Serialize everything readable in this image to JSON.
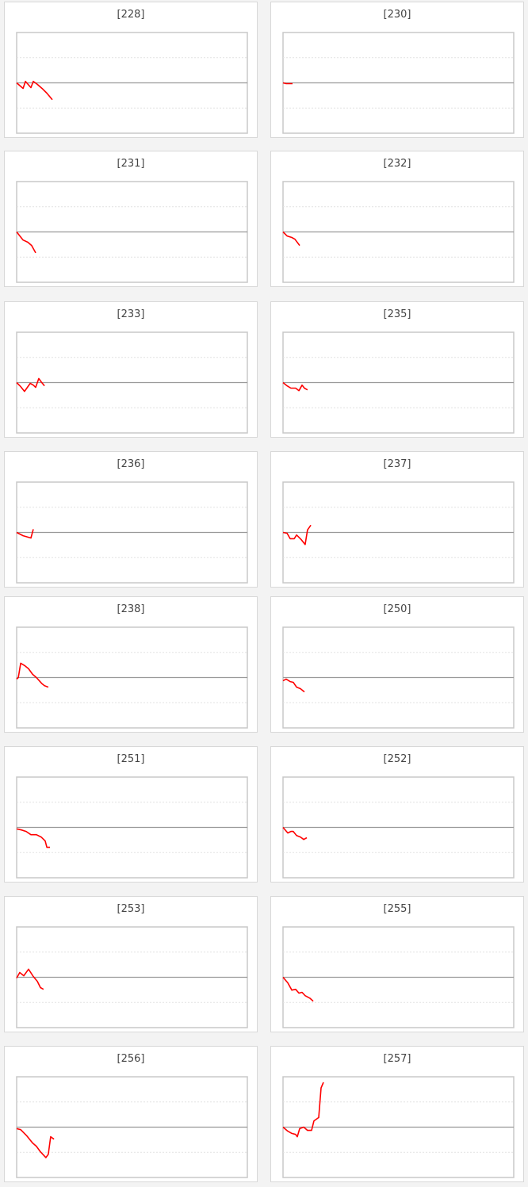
{
  "chart_data": [
    {
      "type": "line",
      "title": "[228]",
      "xlim": [
        0,
        97
      ],
      "ylim": [
        -2,
        2
      ],
      "grid": true,
      "line_color": "#ff0000",
      "x": [
        0,
        2.7,
        3.7,
        6,
        7,
        8.7,
        11,
        12.7,
        15
      ],
      "y": [
        0,
        -0.22,
        0.06,
        -0.19,
        0.06,
        -0.06,
        -0.25,
        -0.41,
        -0.67
      ]
    },
    {
      "type": "line",
      "title": "[230]",
      "xlim": [
        0,
        97
      ],
      "ylim": [
        -2,
        2
      ],
      "grid": true,
      "line_color": "#ff0000",
      "x": [
        0,
        1.3,
        4
      ],
      "y": [
        0,
        -0.03,
        -0.03
      ]
    },
    {
      "type": "line",
      "title": "[231]",
      "xlim": [
        0,
        97
      ],
      "ylim": [
        -2,
        2
      ],
      "grid": true,
      "line_color": "#ff0000",
      "x": [
        0,
        2.7,
        4.7,
        6.3,
        8
      ],
      "y": [
        0,
        -0.32,
        -0.41,
        -0.54,
        -0.83
      ]
    },
    {
      "type": "line",
      "title": "[232]",
      "xlim": [
        0,
        97
      ],
      "ylim": [
        -2,
        2
      ],
      "grid": true,
      "line_color": "#ff0000",
      "x": [
        0,
        1.7,
        3.7,
        5,
        7
      ],
      "y": [
        0,
        -0.16,
        -0.22,
        -0.29,
        -0.54
      ]
    },
    {
      "type": "line",
      "title": "[233]",
      "xlim": [
        0,
        97
      ],
      "ylim": [
        -2,
        2
      ],
      "grid": true,
      "line_color": "#ff0000",
      "x": [
        0,
        1.7,
        3.3,
        5.7,
        7,
        8,
        9.3,
        10.3,
        11.7
      ],
      "y": [
        0,
        -0.16,
        -0.35,
        -0.03,
        -0.1,
        -0.19,
        0.16,
        0.03,
        -0.13
      ]
    },
    {
      "type": "line",
      "title": "[235]",
      "xlim": [
        0,
        97
      ],
      "ylim": [
        -2,
        2
      ],
      "grid": true,
      "line_color": "#ff0000",
      "x": [
        0,
        1.7,
        3.3,
        5.3,
        6.7,
        8,
        9,
        10.3
      ],
      "y": [
        0,
        -0.13,
        -0.22,
        -0.22,
        -0.32,
        -0.1,
        -0.22,
        -0.29
      ]
    },
    {
      "type": "line",
      "title": "[236]",
      "xlim": [
        0,
        97
      ],
      "ylim": [
        -2,
        2
      ],
      "grid": true,
      "line_color": "#ff0000",
      "x": [
        0,
        2.7,
        6,
        7
      ],
      "y": [
        0,
        -0.13,
        -0.22,
        0.13
      ]
    },
    {
      "type": "line",
      "title": "[237]",
      "xlim": [
        0,
        97
      ],
      "ylim": [
        -2,
        2
      ],
      "grid": true,
      "line_color": "#ff0000",
      "x": [
        0,
        1.7,
        3,
        4.7,
        5.7,
        7.7,
        9.3,
        10.3,
        11.7
      ],
      "y": [
        0,
        -0.03,
        -0.25,
        -0.25,
        -0.1,
        -0.29,
        -0.48,
        0.1,
        0.29
      ]
    },
    {
      "type": "line",
      "title": "[238]",
      "xlim": [
        0,
        97
      ],
      "ylim": [
        -2,
        2
      ],
      "grid": true,
      "line_color": "#ff0000",
      "x": [
        0,
        0.7,
        1.7,
        3.3,
        5,
        6.7,
        8.3,
        10.7,
        11.7,
        13.3
      ],
      "y": [
        -0.06,
        0,
        0.57,
        0.48,
        0.35,
        0.13,
        0,
        -0.25,
        -0.32,
        -0.38
      ]
    },
    {
      "type": "line",
      "title": "[250]",
      "xlim": [
        0,
        97
      ],
      "ylim": [
        -2,
        2
      ],
      "grid": true,
      "line_color": "#ff0000",
      "x": [
        0,
        1.3,
        3,
        4.3,
        5.7,
        7.3,
        9
      ],
      "y": [
        -0.13,
        -0.06,
        -0.16,
        -0.19,
        -0.38,
        -0.44,
        -0.57
      ]
    },
    {
      "type": "line",
      "title": "[251]",
      "xlim": [
        0,
        97
      ],
      "ylim": [
        -2,
        2
      ],
      "grid": true,
      "line_color": "#ff0000",
      "x": [
        0,
        2,
        4,
        6,
        8.3,
        10.3,
        12,
        12.7,
        14
      ],
      "y": [
        -0.06,
        -0.1,
        -0.16,
        -0.29,
        -0.29,
        -0.38,
        -0.54,
        -0.79,
        -0.79
      ]
    },
    {
      "type": "line",
      "title": "[252]",
      "xlim": [
        0,
        97
      ],
      "ylim": [
        -2,
        2
      ],
      "grid": true,
      "line_color": "#ff0000",
      "x": [
        0,
        2,
        3.3,
        4.3,
        5.7,
        7.3,
        8.7,
        10
      ],
      "y": [
        0,
        -0.22,
        -0.16,
        -0.16,
        -0.32,
        -0.38,
        -0.48,
        -0.41
      ]
    },
    {
      "type": "line",
      "title": "[253]",
      "xlim": [
        0,
        97
      ],
      "ylim": [
        -2,
        2
      ],
      "grid": true,
      "line_color": "#ff0000",
      "x": [
        0,
        1.3,
        3,
        5,
        7,
        8.7,
        10,
        11.3
      ],
      "y": [
        -0.03,
        0.19,
        0.06,
        0.32,
        0.03,
        -0.16,
        -0.41,
        -0.48
      ]
    },
    {
      "type": "line",
      "title": "[255]",
      "xlim": [
        0,
        97
      ],
      "ylim": [
        -2,
        2
      ],
      "grid": true,
      "line_color": "#ff0000",
      "x": [
        0,
        2,
        3.7,
        5.3,
        6.7,
        8,
        9.3,
        11.3,
        12.7
      ],
      "y": [
        0,
        -0.22,
        -0.51,
        -0.48,
        -0.63,
        -0.6,
        -0.73,
        -0.83,
        -0.95
      ]
    },
    {
      "type": "line",
      "title": "[256]",
      "xlim": [
        0,
        97
      ],
      "ylim": [
        -2,
        2
      ],
      "grid": true,
      "line_color": "#ff0000",
      "x": [
        0,
        1.7,
        4.3,
        6.7,
        8.3,
        10,
        12.3,
        13.3,
        14.3,
        15.7
      ],
      "y": [
        -0.06,
        -0.1,
        -0.35,
        -0.63,
        -0.76,
        -0.98,
        -1.21,
        -1.08,
        -0.38,
        -0.48
      ]
    },
    {
      "type": "line",
      "title": "[257]",
      "xlim": [
        0,
        97
      ],
      "ylim": [
        -2,
        2
      ],
      "grid": true,
      "line_color": "#ff0000",
      "x": [
        0,
        2,
        3.7,
        5.3,
        6,
        7,
        8.7,
        10.3,
        12,
        13,
        15,
        16,
        17
      ],
      "y": [
        0,
        -0.16,
        -0.25,
        -0.29,
        -0.38,
        -0.06,
        0,
        -0.13,
        -0.13,
        0.25,
        0.38,
        1.56,
        1.78
      ]
    }
  ]
}
